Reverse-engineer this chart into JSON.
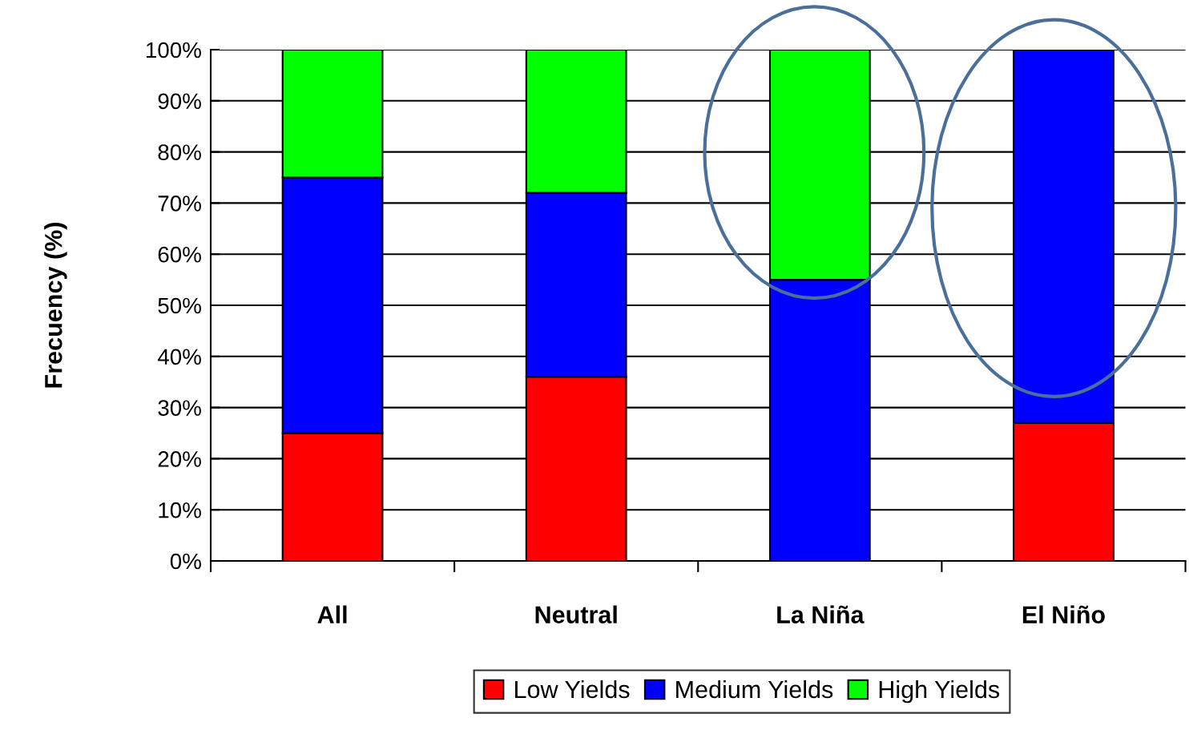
{
  "chart_data": {
    "type": "bar",
    "stacked": true,
    "ylabel": "Frecuency (%)",
    "categories": [
      "All",
      "Neutral",
      "La Niña",
      "El Niño"
    ],
    "series": [
      {
        "name": "Low Yields",
        "color": "#ff0000",
        "values": [
          25,
          36,
          0,
          27
        ]
      },
      {
        "name": "Medium Yields",
        "color": "#0000ff",
        "values": [
          50,
          36,
          55,
          73
        ]
      },
      {
        "name": "High Yields",
        "color": "#00ff00",
        "values": [
          25,
          28,
          45,
          0
        ]
      }
    ],
    "ylim": [
      0,
      100
    ],
    "yticks": [
      {
        "value": 0,
        "label": "0%"
      },
      {
        "value": 10,
        "label": "10%"
      },
      {
        "value": 20,
        "label": "20%"
      },
      {
        "value": 30,
        "label": "30%"
      },
      {
        "value": 40,
        "label": "40%"
      },
      {
        "value": 50,
        "label": "50%"
      },
      {
        "value": 60,
        "label": "60%"
      },
      {
        "value": 70,
        "label": "70%"
      },
      {
        "value": 80,
        "label": "80%"
      },
      {
        "value": 90,
        "label": "90%"
      },
      {
        "value": 100,
        "label": "100%"
      }
    ],
    "grid": "y",
    "legend": "bottom"
  }
}
